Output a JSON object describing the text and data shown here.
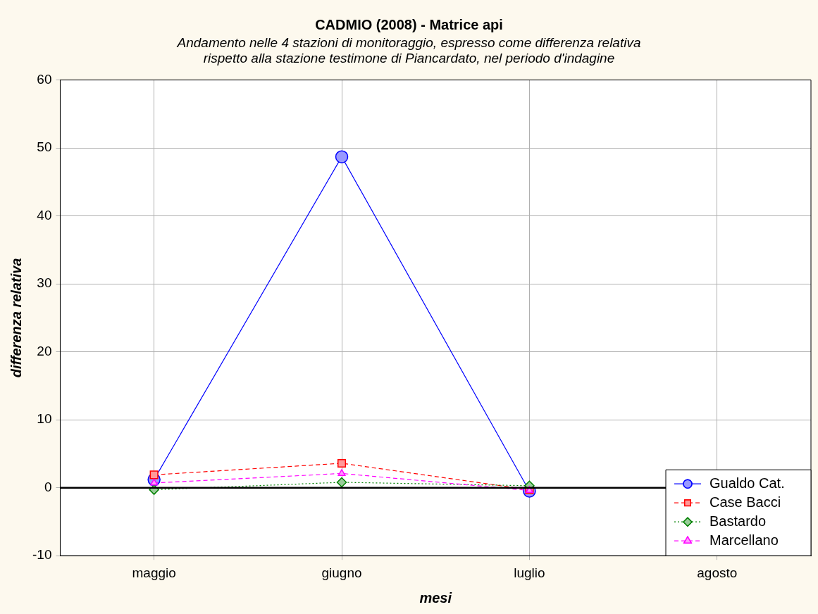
{
  "chart_data": {
    "type": "line",
    "title": "CADMIO (2008) - Matrice api",
    "subtitle": "Andamento nelle 4 stazioni di monitoraggio, espresso come differenza relativa\nrispetto alla stazione testimone di Piancardato, nel periodo d'indagine",
    "xlabel": "mesi",
    "ylabel": "differenza relativa",
    "categories": [
      "maggio",
      "giugno",
      "luglio",
      "agosto"
    ],
    "series": [
      {
        "name": "Gualdo Cat.",
        "color": "#0000ff",
        "marker": "circle",
        "line_style": "solid",
        "values": [
          1.2,
          48.7,
          -0.5,
          null
        ]
      },
      {
        "name": "Case Bacci",
        "color": "#ff0000",
        "marker": "square",
        "line_style": "dashed",
        "values": [
          1.9,
          3.6,
          -0.3,
          null
        ]
      },
      {
        "name": "Bastardo",
        "color": "#008000",
        "marker": "diamond",
        "line_style": "dotted",
        "values": [
          -0.3,
          0.8,
          0.3,
          null
        ]
      },
      {
        "name": "Marcellano",
        "color": "#ff00ff",
        "marker": "triangle",
        "line_style": "dashed",
        "values": [
          0.7,
          2.1,
          -0.4,
          null
        ]
      }
    ],
    "ylim": [
      -10,
      60
    ],
    "yticks": [
      -10,
      0,
      10,
      20,
      30,
      40,
      50,
      60
    ],
    "grid": true,
    "legend": "bottom right",
    "ref_lines": [
      {
        "axis": "y",
        "value": 0,
        "color": "#000000"
      }
    ]
  }
}
